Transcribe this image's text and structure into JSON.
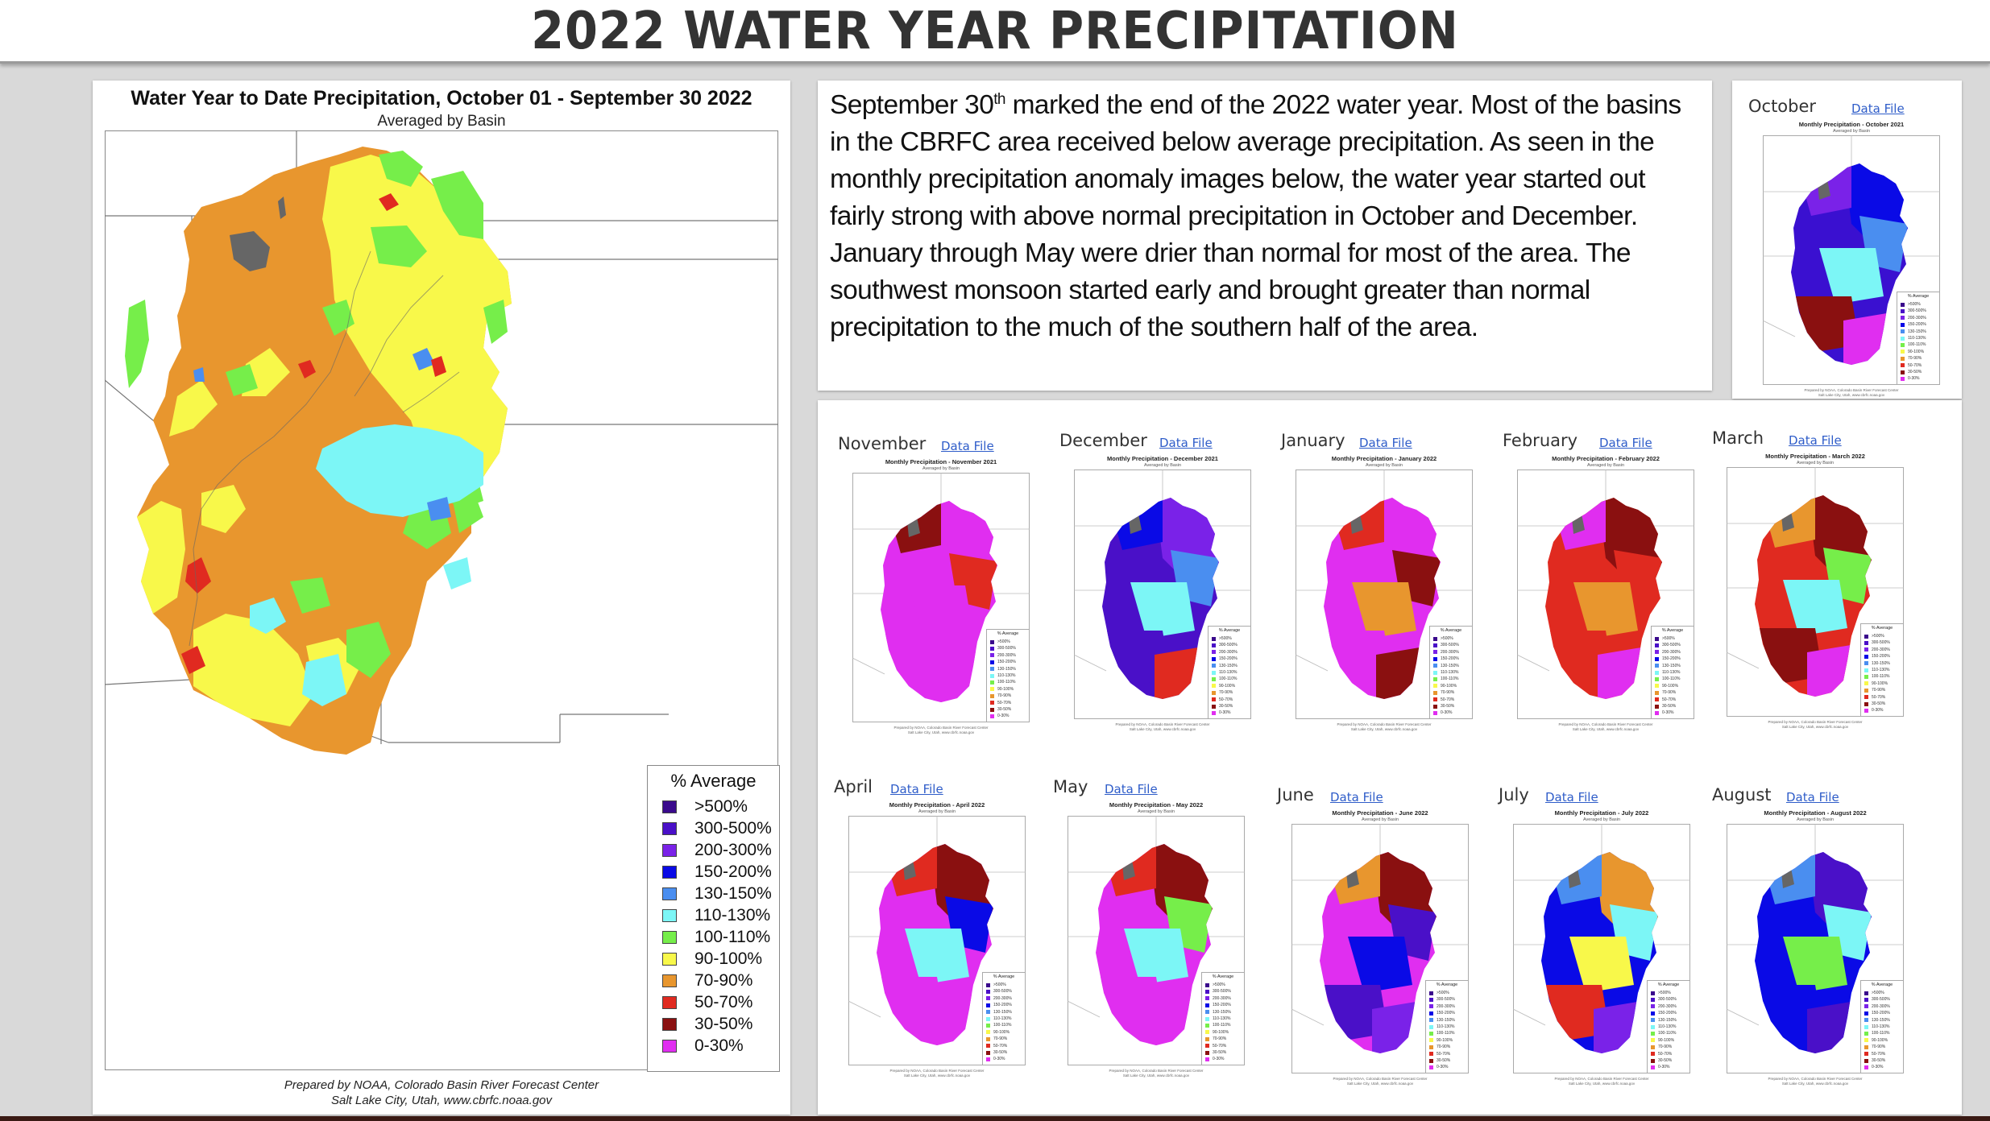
{
  "header": {
    "title": "2022 WATER YEAR PRECIPITATION"
  },
  "main_map": {
    "title": "Water Year to Date Precipitation, October 01  - September 30 2022",
    "subtitle": "Averaged by Basin",
    "footer_line1": "Prepared by NOAA, Colorado Basin River Forecast Center",
    "footer_line2": "Salt Lake City, Utah, www.cbrfc.noaa.gov",
    "legend": {
      "title": "% Average",
      "items": [
        {
          "label": ">500%",
          "color": "#3a0a8c"
        },
        {
          "label": "300-500%",
          "color": "#4a10c8"
        },
        {
          "label": "200-300%",
          "color": "#7a22e8"
        },
        {
          "label": "150-200%",
          "color": "#0a0ae6"
        },
        {
          "label": "130-150%",
          "color": "#4a8ef0"
        },
        {
          "label": "110-130%",
          "color": "#7cf6f6"
        },
        {
          "label": "100-110%",
          "color": "#76ee4a"
        },
        {
          "label": "90-100%",
          "color": "#f8f84a"
        },
        {
          "label": "70-90%",
          "color": "#e8962e"
        },
        {
          "label": "50-70%",
          "color": "#e02a20"
        },
        {
          "label": "30-50%",
          "color": "#8a1010"
        },
        {
          "label": "0-30%",
          "color": "#e02ef0"
        }
      ]
    }
  },
  "summary": {
    "pre": "September 30",
    "sup": "th",
    "post": " marked the end of the 2022 water year. Most of the basins in the CBRFC area received below average precipitation. As seen in the monthly precipitation anomaly images below, the water year started out fairly strong with above normal precipitation in October and December. January through May were drier than normal for most of the area. The southwest monsoon started early and brought greater than normal precipitation to the much of the southern half of the area."
  },
  "thumb_common": {
    "subtitle": "Averaged by Basin",
    "legend_title": "% Average",
    "footer_line1": "Prepared by NOAA, Colorado Basin River Forecast Center",
    "footer_line2": "Salt Lake City, Utah, www.cbrfc.noaa.gov",
    "link_label": "Data File"
  },
  "months": [
    {
      "name": "October",
      "map_title": "Monthly Precipitation - October 2021",
      "palette": [
        "#3a10d0",
        "#0a0ae6",
        "#7a22e8",
        "#4a8ef0",
        "#7cf6f6",
        "#8a1010",
        "#e02ef0"
      ]
    },
    {
      "name": "November",
      "map_title": "Monthly Precipitation - November 2021",
      "palette": [
        "#e02ef0",
        "#e02ef0",
        "#8a1010",
        "#e02a20",
        "#e02ef0",
        "#e02ef0",
        "#e02ef0"
      ]
    },
    {
      "name": "December",
      "map_title": "Monthly Precipitation - December 2021",
      "palette": [
        "#4a10c8",
        "#7a22e8",
        "#0a0ae6",
        "#4a8ef0",
        "#7cf6f6",
        "#4a10c8",
        "#e02a20"
      ]
    },
    {
      "name": "January",
      "map_title": "Monthly Precipitation - January 2022",
      "palette": [
        "#e02ef0",
        "#e02ef0",
        "#e02a20",
        "#8a1010",
        "#e8962e",
        "#e02ef0",
        "#8a1010"
      ]
    },
    {
      "name": "February",
      "map_title": "Monthly Precipitation - February 2022",
      "palette": [
        "#e02a20",
        "#8a1010",
        "#e02ef0",
        "#e02a20",
        "#e8962e",
        "#e02a20",
        "#e02ef0"
      ]
    },
    {
      "name": "March",
      "map_title": "Monthly Precipitation - March 2022",
      "palette": [
        "#e02a20",
        "#8a1010",
        "#e8962e",
        "#76ee4a",
        "#7cf6f6",
        "#8a1010",
        "#e02ef0"
      ]
    },
    {
      "name": "April",
      "map_title": "Monthly Precipitation - April 2022",
      "palette": [
        "#e02ef0",
        "#8a1010",
        "#e02a20",
        "#0a0ae6",
        "#7cf6f6",
        "#e02ef0",
        "#e02ef0"
      ]
    },
    {
      "name": "May",
      "map_title": "Monthly Precipitation - May 2022",
      "palette": [
        "#e02ef0",
        "#8a1010",
        "#e02a20",
        "#76ee4a",
        "#7cf6f6",
        "#e02ef0",
        "#e02ef0"
      ]
    },
    {
      "name": "June",
      "map_title": "Monthly Precipitation - June 2022",
      "palette": [
        "#e02ef0",
        "#8a1010",
        "#e8962e",
        "#4a10c8",
        "#0a0ae6",
        "#4a10c8",
        "#7a22e8"
      ]
    },
    {
      "name": "July",
      "map_title": "Monthly Precipitation - July 2022",
      "palette": [
        "#0a0ae6",
        "#e8962e",
        "#4a8ef0",
        "#7cf6f6",
        "#f8f84a",
        "#e02a20",
        "#7a22e8"
      ]
    },
    {
      "name": "August",
      "map_title": "Monthly Precipitation - August 2022",
      "palette": [
        "#0a0ae6",
        "#4a10c8",
        "#4a8ef0",
        "#7cf6f6",
        "#76ee4a",
        "#0a0ae6",
        "#4a10c8"
      ]
    }
  ]
}
